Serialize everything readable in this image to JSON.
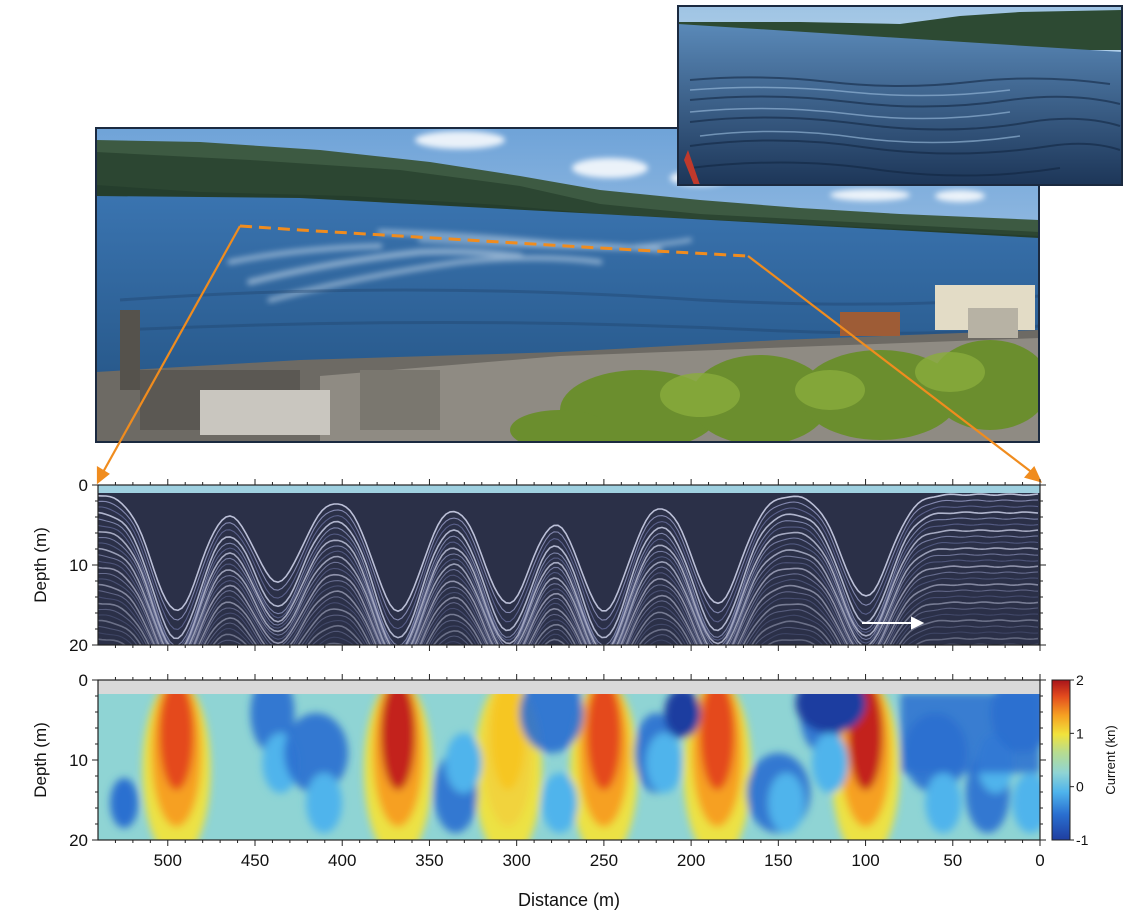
{
  "figure": {
    "photo_panorama": "Fjord panorama photograph with surface wave bands, dashed orange transect line and industrial site in foreground",
    "photo_inset": "Close-up photograph of rippled water surface"
  },
  "panels": {
    "echo": {
      "ylabel": "Depth (m)"
    },
    "current": {
      "ylabel": "Depth (m)",
      "xlabel": "Distance (m)"
    },
    "colorbar": {
      "label": "Current (kn)",
      "ticks": [
        "2",
        "1",
        "0",
        "-1"
      ]
    }
  },
  "colors": {
    "transect": "#f08c1e",
    "water": "#2f5f98",
    "echo_bg": "#2b3048"
  },
  "chart_data": [
    {
      "type": "heatmap",
      "title": "",
      "xlabel": "",
      "ylabel": "Depth (m)",
      "xlim": [
        540,
        0
      ],
      "ylim": [
        20,
        0
      ],
      "yticks": [
        0,
        10,
        20
      ],
      "description_variable": "acoustic backscatter",
      "trough_distances_m": [
        495,
        437,
        368,
        305,
        250,
        185,
        100
      ],
      "trough_depths_m": [
        19,
        15,
        19,
        18,
        19,
        18,
        17
      ]
    },
    {
      "type": "heatmap",
      "title": "",
      "xlabel": "Distance (m)",
      "ylabel": "Depth (m)",
      "xlim": [
        540,
        0
      ],
      "ylim": [
        20,
        0
      ],
      "xticks": [
        500,
        450,
        400,
        350,
        300,
        250,
        200,
        150,
        100,
        50,
        0
      ],
      "yticks": [
        0,
        10,
        20
      ],
      "colorbar": {
        "label": "Current (kn)",
        "range": [
          -1,
          2
        ]
      },
      "positive_current_bands_m": [
        {
          "center": 495,
          "peak_kn": 1.7
        },
        {
          "center": 368,
          "peak_kn": 2.0
        },
        {
          "center": 305,
          "peak_kn": 0.8
        },
        {
          "center": 250,
          "peak_kn": 1.6
        },
        {
          "center": 185,
          "peak_kn": 1.6
        },
        {
          "center": 100,
          "peak_kn": 2.0
        }
      ]
    }
  ]
}
